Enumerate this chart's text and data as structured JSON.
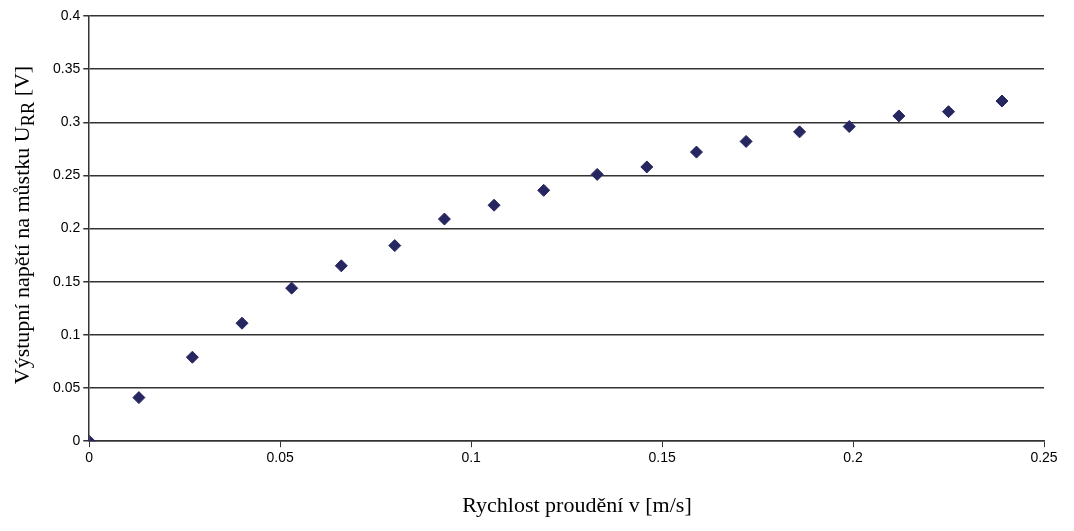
{
  "chart_data": {
    "type": "scatter",
    "xlabel": "Rychlost proudění v [m/s]",
    "ylabel": "Výstupní napětí na můstku U$_{RR}$ [V]",
    "x": [
      0,
      0.013,
      0.027,
      0.04,
      0.053,
      0.066,
      0.08,
      0.093,
      0.106,
      0.119,
      0.133,
      0.146,
      0.159,
      0.172,
      0.186,
      0.199,
      0.212,
      0.225,
      0.239
    ],
    "values": [
      0,
      0.041,
      0.079,
      0.111,
      0.144,
      0.165,
      0.184,
      0.209,
      0.222,
      0.236,
      0.251,
      0.258,
      0.272,
      0.282,
      0.291,
      0.296,
      0.306,
      0.31,
      0.32
    ],
    "color": "#262660",
    "marker": "diamond",
    "xlim": [
      0,
      0.25
    ],
    "xticks": [
      0,
      0.05,
      0.1,
      0.15,
      0.2,
      0.25
    ],
    "ylim": [
      0,
      0.4
    ],
    "yticks": [
      0,
      0.05,
      0.1,
      0.15,
      0.2,
      0.25,
      0.3,
      0.35,
      0.4
    ],
    "grid": "y",
    "legend": false
  }
}
